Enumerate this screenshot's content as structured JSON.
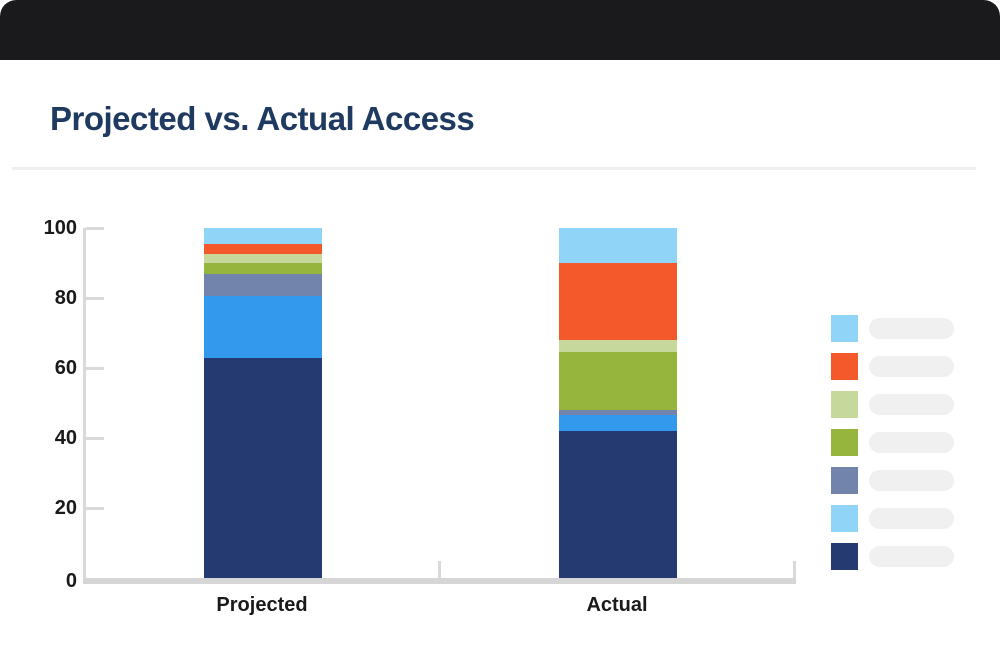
{
  "card": {
    "title": "Projected vs. Actual Access"
  },
  "chart_data": {
    "type": "bar",
    "stacked": true,
    "title": "Projected vs. Actual Access",
    "categories": [
      "Projected",
      "Actual"
    ],
    "series": [
      {
        "name": "navy",
        "color": "#263A72",
        "values": [
          63,
          42
        ]
      },
      {
        "name": "bright-blue",
        "color": "#3399EC",
        "values": [
          17.5,
          4.5
        ]
      },
      {
        "name": "slate-blue",
        "color": "#7384AC",
        "values": [
          6.5,
          1.5
        ]
      },
      {
        "name": "green",
        "color": "#95B53C",
        "values": [
          3,
          16.5
        ]
      },
      {
        "name": "pale-green",
        "color": "#C6D89B",
        "values": [
          2.5,
          3.5
        ]
      },
      {
        "name": "orange",
        "color": "#F4592C",
        "values": [
          3,
          22
        ]
      },
      {
        "name": "light-blue",
        "color": "#90D5F7",
        "values": [
          4.5,
          10
        ]
      }
    ],
    "xlabel": "",
    "ylabel": "",
    "ylim": [
      0,
      100
    ],
    "yticks": [
      0,
      20,
      40,
      60,
      80,
      100
    ],
    "grid": false,
    "legend_position": "right",
    "legend_labels_redacted": true,
    "legend_items_top_to_bottom": [
      {
        "name": "light-blue",
        "color": "#90D5F7"
      },
      {
        "name": "orange",
        "color": "#F4592C"
      },
      {
        "name": "pale-green",
        "color": "#C6D89B"
      },
      {
        "name": "green",
        "color": "#95B53C"
      },
      {
        "name": "slate-blue",
        "color": "#7384AC"
      },
      {
        "name": "light-blue-2",
        "color": "#90D5F7"
      },
      {
        "name": "navy",
        "color": "#263A72"
      }
    ]
  },
  "colors": {
    "header_bar": "#1A1A1C",
    "title_text": "#1F3A60",
    "axis": "#D9D9D9",
    "baseline": "#D6D6D6",
    "tick_label": "#1A1A1A",
    "category_label": "#1A1A1A",
    "divider": "#EFEFEF",
    "legend_placeholder": "#F0F0F0"
  }
}
